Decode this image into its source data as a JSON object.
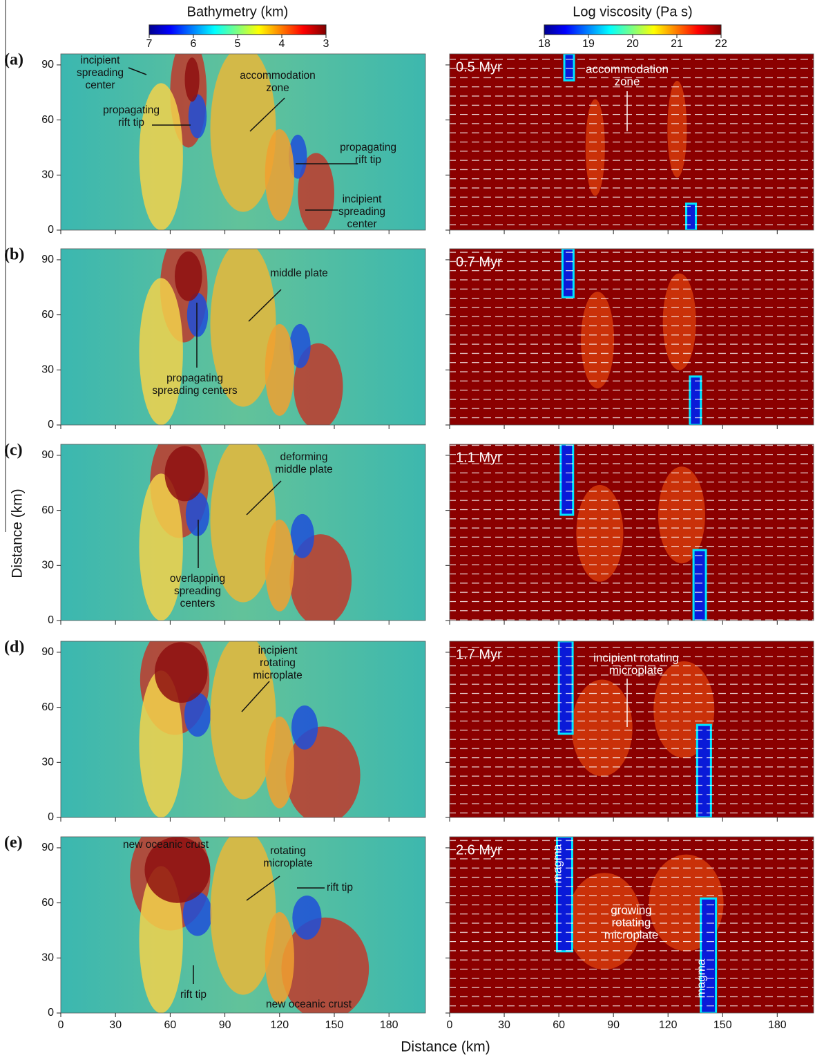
{
  "figure": {
    "colorbars": [
      {
        "title": "Bathymetry (km)",
        "lim": [
          7,
          3
        ],
        "ticks": [
          7,
          6,
          5,
          4,
          3
        ]
      },
      {
        "title": "Log viscosity (Pa s)",
        "lim": [
          18,
          22
        ],
        "ticks": [
          18,
          19,
          20,
          21,
          22
        ]
      }
    ],
    "axes": {
      "xlim": [
        0,
        200
      ],
      "ylim": [
        0,
        96
      ],
      "xticks": [
        0,
        30,
        60,
        90,
        120,
        150,
        180
      ],
      "yticks": [
        0,
        30,
        60,
        90
      ],
      "xlabel": "Distance (km)",
      "ylabel": "Distance (km)"
    },
    "panels": [
      {
        "label": "(a)",
        "time": "0.5 Myr",
        "left_annotations": [
          [
            "incipient",
            "spreading",
            "center"
          ],
          [
            "propagating",
            "rift tip"
          ],
          [
            "accommodation",
            "zone"
          ],
          [
            "propagating",
            "rift tip"
          ],
          [
            "incipient",
            "spreading",
            "center"
          ]
        ],
        "right_annotations": [
          [
            "accommodation",
            "zone"
          ]
        ]
      },
      {
        "label": "(b)",
        "time": "0.7 Myr",
        "left_annotations": [
          [
            "middle plate"
          ],
          [
            "propagating",
            "spreading centers"
          ]
        ],
        "right_annotations": []
      },
      {
        "label": "(c)",
        "time": "1.1 Myr",
        "left_annotations": [
          [
            "deforming",
            "middle plate"
          ],
          [
            "overlapping",
            "spreading",
            "centers"
          ]
        ],
        "right_annotations": []
      },
      {
        "label": "(d)",
        "time": "1.7 Myr",
        "left_annotations": [
          [
            "incipient",
            "rotating",
            "microplate"
          ]
        ],
        "right_annotations": [
          [
            "incipient rotating",
            "microplate"
          ]
        ]
      },
      {
        "label": "(e)",
        "time": "2.6 Myr",
        "left_annotations": [
          [
            "new oceanic crust"
          ],
          [
            "rotating",
            "microplate"
          ],
          [
            "rift tip"
          ],
          [
            "rift tip"
          ],
          [
            "new oceanic crust"
          ]
        ],
        "right_annotations": [
          [
            "growing",
            "rotating",
            "microplate"
          ],
          [
            "magma"
          ],
          [
            "magma"
          ]
        ]
      }
    ]
  }
}
